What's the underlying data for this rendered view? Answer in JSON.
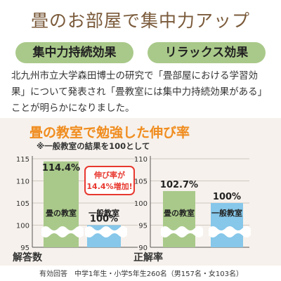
{
  "header": {
    "title": "畳のお部屋で集中力アップ",
    "tags": [
      "集中力持続効果",
      "リラックス効果"
    ]
  },
  "body": {
    "text": "北九州市立大学森田博士の研究で「畳部屋における学習効果」について発表され「畳教室には集中力持続効果がある」ことが明らかになりました。"
  },
  "chart_section": {
    "title": "畳の教室で勉強した伸び率",
    "note": "※一般教室の結果を100として",
    "callout": [
      "伸び率が",
      "14.4%増加!"
    ],
    "footnote": "有効回答　中学1年生・小学5年生260名（男157名・女103名）"
  },
  "colors": {
    "tatami": "#a9c98a",
    "normal": "#86c7ea",
    "accent": "#f08c1e",
    "callout": "#e8382f"
  },
  "chart_data": [
    {
      "type": "bar",
      "xlabel": "解答数",
      "categories": [
        "畳の教室",
        "一般教室"
      ],
      "values": [
        114.4,
        100
      ],
      "value_labels": [
        "114.4%",
        "100%"
      ],
      "ylim": [
        95,
        115
      ],
      "yticks": [
        "115",
        "110",
        "105",
        "100",
        "95"
      ]
    },
    {
      "type": "bar",
      "xlabel": "正解率",
      "categories": [
        "畳の教室",
        "一般教室"
      ],
      "values": [
        102.7,
        100
      ],
      "value_labels": [
        "102.7%",
        "100%"
      ],
      "ylim": [
        90,
        110
      ],
      "yticks": [
        "110",
        "105",
        "100",
        "95",
        "90"
      ]
    }
  ]
}
